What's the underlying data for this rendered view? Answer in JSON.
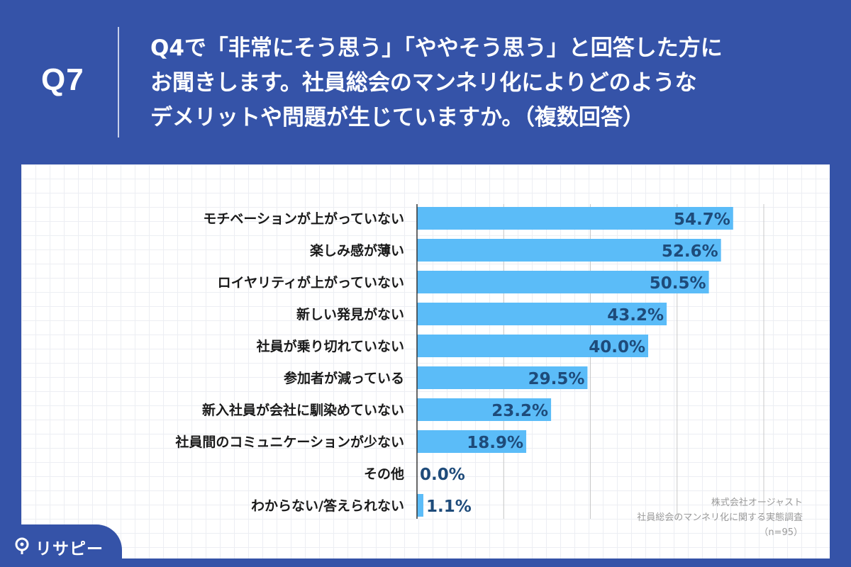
{
  "header": {
    "question_number": "Q7",
    "question_lines": [
      "Q4で「非常にそう思う」「ややそう思う」と回答した方に",
      "お聞きします。社員総会のマンネリ化によりどのような",
      "デメリットや問題が生じていますか。（複数回答）"
    ]
  },
  "chart_data": {
    "type": "bar",
    "orientation": "horizontal",
    "categories": [
      "モチベーションが上がっていない",
      "楽しみ感が薄い",
      "ロイヤリティが上がっていない",
      "新しい発見がない",
      "社員が乗り切れていない",
      "参加者が減っている",
      "新入社員が会社に馴染めていない",
      "社員間のコミュニケーションが少ない",
      "その他",
      "わからない/答えられない"
    ],
    "values": [
      54.7,
      52.6,
      50.5,
      43.2,
      40.0,
      29.5,
      23.2,
      18.9,
      0.0,
      1.1
    ],
    "labels": [
      "54.7%",
      "52.6%",
      "50.5%",
      "43.2%",
      "40.0%",
      "29.5%",
      "23.2%",
      "18.9%",
      "0.0%",
      "1.1%"
    ],
    "xlim": [
      0,
      60
    ],
    "grid": true,
    "bar_color": "#5bbcf8",
    "label_color": "#1e4b7a"
  },
  "source": {
    "lines": [
      "株式会社オージャスト",
      "社員総会のマンネリ化に関する実態調査",
      "（n=95）"
    ]
  },
  "logo": {
    "text": "リサピー"
  },
  "colors": {
    "header_bg": "#3553a8",
    "panel_bg": "#ffffff"
  }
}
